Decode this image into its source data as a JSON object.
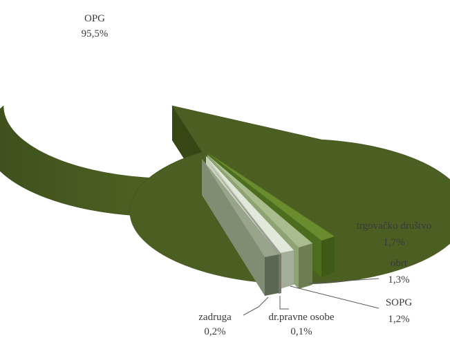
{
  "chart_data": {
    "type": "pie",
    "style": "3d-exploded",
    "title": "",
    "slices": [
      {
        "label": "OPG",
        "value_label": "95,5%",
        "value": 95.5,
        "color": "#4a5e23"
      },
      {
        "label": "trgovačko društvo",
        "value_label": "1,7%",
        "value": 1.7,
        "color": "#62822a"
      },
      {
        "label": "obrt",
        "value_label": "1,3%",
        "value": 1.3,
        "color": "#a9bb8f"
      },
      {
        "label": "SOPG",
        "value_label": "1,2%",
        "value": 1.2,
        "color": "#e1e7d9"
      },
      {
        "label": "dr.pravne osobe",
        "value_label": "0,1%",
        "value": 0.1,
        "color": "#9c9c98"
      },
      {
        "label": "zadruga",
        "value_label": "0,2%",
        "value": 0.2,
        "color": "#7c8c70"
      }
    ]
  }
}
